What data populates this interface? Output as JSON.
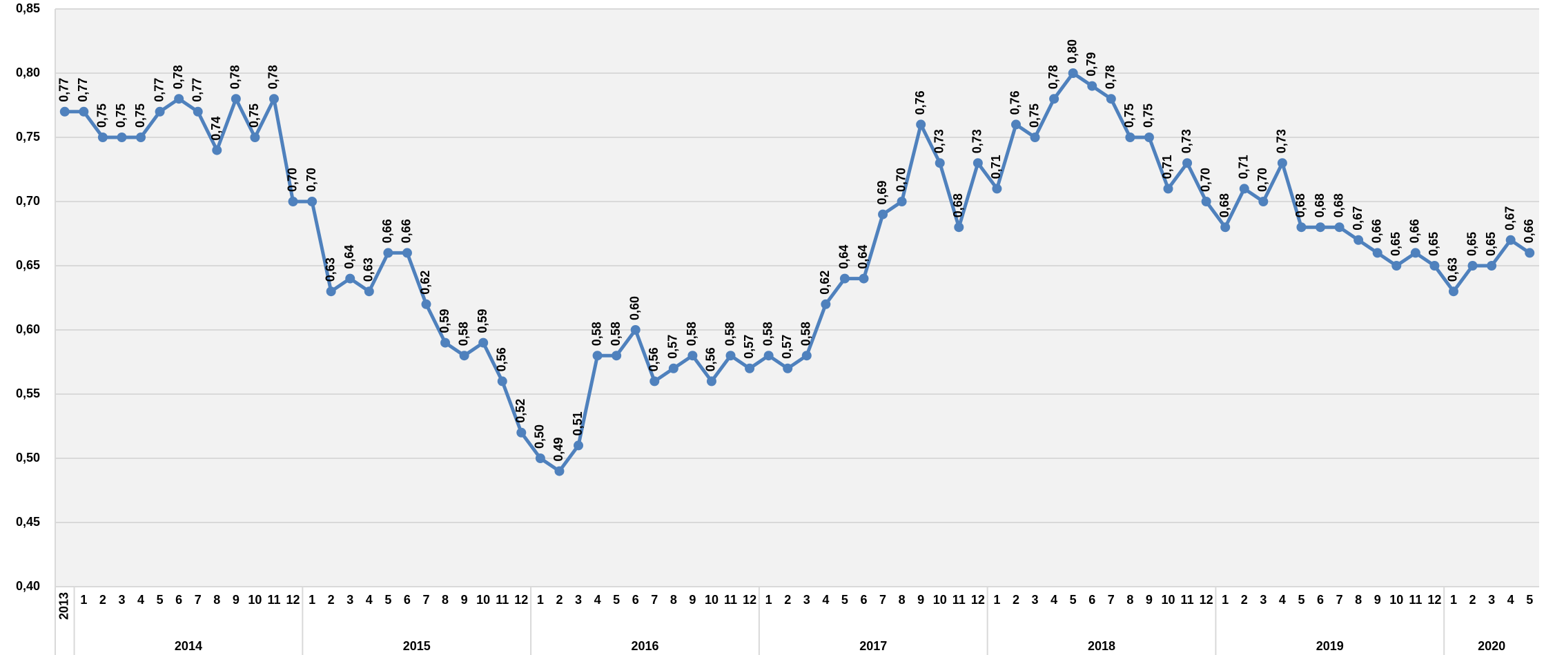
{
  "chart_data": {
    "type": "line",
    "categories": [
      "2013",
      "1",
      "2",
      "3",
      "4",
      "5",
      "6",
      "7",
      "8",
      "9",
      "10",
      "11",
      "12",
      "1",
      "2",
      "3",
      "4",
      "5",
      "6",
      "7",
      "8",
      "9",
      "10",
      "11",
      "12",
      "1",
      "2",
      "3",
      "4",
      "5",
      "6",
      "7",
      "8",
      "9",
      "10",
      "11",
      "12",
      "1",
      "2",
      "3",
      "4",
      "5",
      "6",
      "7",
      "8",
      "9",
      "10",
      "11",
      "12",
      "1",
      "2",
      "3",
      "4",
      "5",
      "6",
      "7",
      "8",
      "9",
      "10",
      "11",
      "12",
      "1",
      "2",
      "3",
      "4",
      "5",
      "6",
      "7",
      "8",
      "9",
      "10",
      "11",
      "12",
      "1",
      "2",
      "3",
      "4",
      "5"
    ],
    "years": [
      null,
      "2014",
      "2014",
      "2014",
      "2014",
      "2014",
      "2014",
      "2014",
      "2014",
      "2014",
      "2014",
      "2014",
      "2014",
      "2015",
      "2015",
      "2015",
      "2015",
      "2015",
      "2015",
      "2015",
      "2015",
      "2015",
      "2015",
      "2015",
      "2015",
      "2016",
      "2016",
      "2016",
      "2016",
      "2016",
      "2016",
      "2016",
      "2016",
      "2016",
      "2016",
      "2016",
      "2016",
      "2017",
      "2017",
      "2017",
      "2017",
      "2017",
      "2017",
      "2017",
      "2017",
      "2017",
      "2017",
      "2017",
      "2017",
      "2018",
      "2018",
      "2018",
      "2018",
      "2018",
      "2018",
      "2018",
      "2018",
      "2018",
      "2018",
      "2018",
      "2018",
      "2019",
      "2019",
      "2019",
      "2019",
      "2019",
      "2019",
      "2019",
      "2019",
      "2019",
      "2019",
      "2019",
      "2019",
      "2020",
      "2020",
      "2020",
      "2020",
      "2020"
    ],
    "series": [
      {
        "color": "#4f81bd",
        "values": [
          0.77,
          0.77,
          0.75,
          0.75,
          0.75,
          0.77,
          0.78,
          0.77,
          0.74,
          0.78,
          0.75,
          0.78,
          0.7,
          0.7,
          0.63,
          0.64,
          0.63,
          0.66,
          0.66,
          0.62,
          0.59,
          0.58,
          0.59,
          0.56,
          0.52,
          0.5,
          0.49,
          0.51,
          0.58,
          0.58,
          0.6,
          0.56,
          0.57,
          0.58,
          0.56,
          0.58,
          0.57,
          0.58,
          0.57,
          0.58,
          0.62,
          0.64,
          0.64,
          0.69,
          0.7,
          0.76,
          0.73,
          0.68,
          0.73,
          0.71,
          0.76,
          0.75,
          0.78,
          0.8,
          0.79,
          0.78,
          0.75,
          0.75,
          0.71,
          0.73,
          0.7,
          0.68,
          0.71,
          0.7,
          0.73,
          0.68,
          0.68,
          0.68,
          0.67,
          0.66,
          0.65,
          0.66,
          0.65,
          0.63,
          0.65,
          0.65,
          0.67,
          0.66
        ],
        "value_labels": [
          "0,77",
          "0,77",
          "0,75",
          "0,75",
          "0,75",
          "0,77",
          "0,78",
          "0,77",
          "0,74",
          "0,78",
          "0,75",
          "0,78",
          "0,70",
          "0,70",
          "0,63",
          "0,64",
          "0,63",
          "0,66",
          "0,66",
          "0,62",
          "0,59",
          "0,58",
          "0,59",
          "0,56",
          "0,52",
          "0,50",
          "0,49",
          "0,51",
          "0,58",
          "0,58",
          "0,60",
          "0,56",
          "0,57",
          "0,58",
          "0,56",
          "0,58",
          "0,57",
          "0,58",
          "0,57",
          "0,58",
          "0,62",
          "0,64",
          "0,64",
          "0,69",
          "0,70",
          "0,76",
          "0,73",
          "0,68",
          "0,73",
          "0,71",
          "0,76",
          "0,75",
          "0,78",
          "0,80",
          "0,79",
          "0,78",
          "0,75",
          "0,75",
          "0,71",
          "0,73",
          "0,70",
          "0,68",
          "0,71",
          "0,70",
          "0,73",
          "0,68",
          "0,68",
          "0,68",
          "0,67",
          "0,66",
          "0,65",
          "0,66",
          "0,65",
          "0,63",
          "0,65",
          "0,65",
          "0,67",
          "0,66"
        ]
      }
    ],
    "ylim": [
      0.4,
      0.85
    ],
    "yticks": [
      {
        "value": 0.4,
        "label": "0,40"
      },
      {
        "value": 0.45,
        "label": "0,45"
      },
      {
        "value": 0.5,
        "label": "0,50"
      },
      {
        "value": 0.55,
        "label": "0,55"
      },
      {
        "value": 0.6,
        "label": "0,60"
      },
      {
        "value": 0.65,
        "label": "0,65"
      },
      {
        "value": 0.7,
        "label": "0,70"
      },
      {
        "value": 0.75,
        "label": "0,75"
      },
      {
        "value": 0.8,
        "label": "0,80"
      },
      {
        "value": 0.85,
        "label": "0,85"
      }
    ],
    "grid": true
  }
}
